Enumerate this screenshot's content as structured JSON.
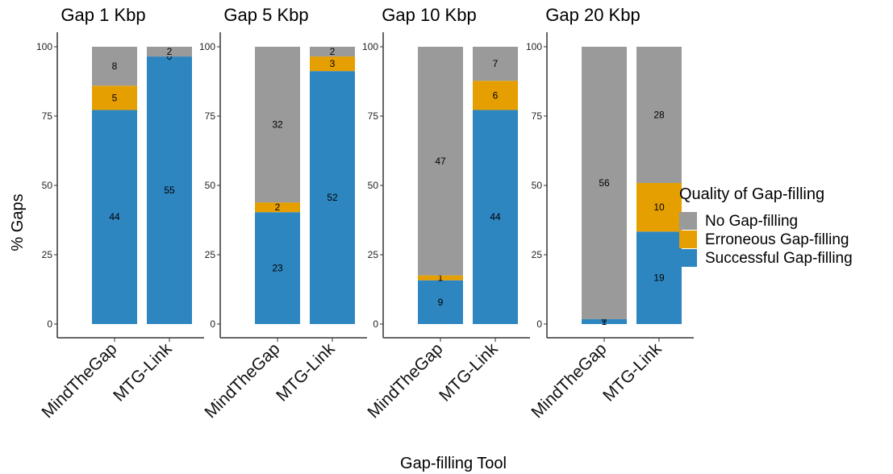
{
  "chart_data": {
    "type": "bar",
    "stacked": true,
    "percent": true,
    "xlabel": "Gap-filling Tool",
    "ylabel": "% Gaps",
    "ylim": [
      0,
      100
    ],
    "yticks": [
      "0",
      "25",
      "50",
      "75",
      "100"
    ],
    "legend": {
      "title": "Quality of Gap-filling",
      "position": "right",
      "items": [
        {
          "name": " No Gap-filling",
          "color": "#9a9a9a"
        },
        {
          "name": "Erroneous Gap-filling",
          "color": "#e69f00"
        },
        {
          "name": "Successful Gap-filling",
          "color": "#2e86c1"
        }
      ]
    },
    "panels": [
      {
        "title": "Gap 1 Kbp",
        "categories": [
          "MindTheGap",
          "MTG-Link"
        ],
        "counts": {
          "Successful Gap-filling": [
            44,
            55
          ],
          "Erroneous Gap-filling": [
            5,
            0
          ],
          "No Gap-filling": [
            8,
            2
          ]
        }
      },
      {
        "title": "Gap 5 Kbp",
        "categories": [
          "MindTheGap",
          "MTG-Link"
        ],
        "counts": {
          "Successful Gap-filling": [
            23,
            52
          ],
          "Erroneous Gap-filling": [
            2,
            3
          ],
          "No Gap-filling": [
            32,
            2
          ]
        }
      },
      {
        "title": "Gap 10 Kbp",
        "categories": [
          "MindTheGap",
          "MTG-Link"
        ],
        "counts": {
          "Successful Gap-filling": [
            9,
            44
          ],
          "Erroneous Gap-filling": [
            1,
            6
          ],
          "No Gap-filling": [
            47,
            7
          ]
        }
      },
      {
        "title": "Gap 20 Kbp",
        "categories": [
          "MindTheGap",
          "MTG-Link"
        ],
        "counts": {
          "Successful Gap-filling": [
            1,
            19
          ],
          "Erroneous Gap-filling": [
            0,
            10
          ],
          "No Gap-filling": [
            56,
            28
          ]
        }
      }
    ]
  }
}
